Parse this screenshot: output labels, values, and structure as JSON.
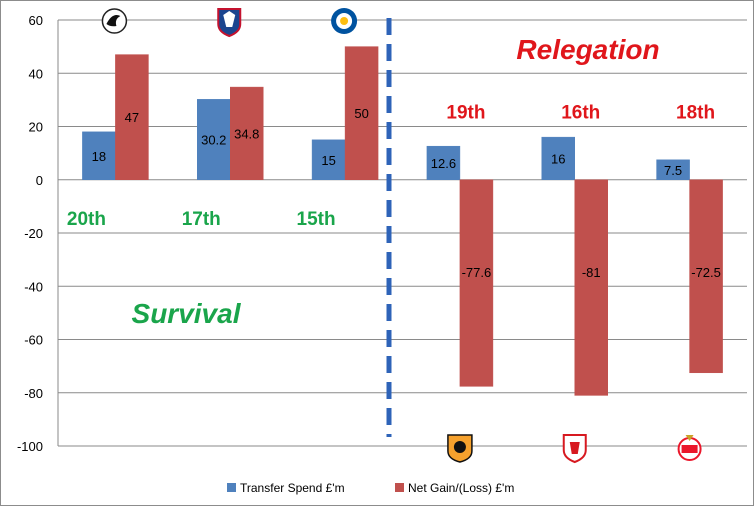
{
  "chart_data": {
    "type": "bar",
    "ylim": [
      -100,
      60
    ],
    "yticks": [
      60,
      40,
      20,
      0,
      -20,
      -40,
      -60,
      -80,
      -100
    ],
    "grid": true,
    "legend_position": "bottom",
    "categories": [
      "Swansea City",
      "Crystal Palace",
      "Leicester City",
      "Hull City",
      "Middlesbrough",
      "Sunderland"
    ],
    "series": [
      {
        "name": "Transfer Spend £'m",
        "color": "#4f81bd",
        "values": [
          18,
          30.2,
          15,
          12.6,
          16,
          7.5
        ]
      },
      {
        "name": "Net Gain/(Loss) £'m",
        "color": "#c0504d",
        "values": [
          47,
          34.8,
          50,
          -77.6,
          -81,
          -72.5
        ]
      }
    ],
    "data_labels": [
      [
        "18",
        "30.2",
        "15",
        "12.6",
        "16",
        "7.5"
      ],
      [
        "47",
        "34.8",
        "50",
        "-77.6",
        "-81",
        "-72.5"
      ]
    ],
    "positions": [
      "20th",
      "17th",
      "15th",
      "19th",
      "16th",
      "18th"
    ],
    "position_colors": [
      "#1aa54b",
      "#1aa54b",
      "#1aa54b",
      "#e0161b",
      "#e0161b",
      "#e0161b"
    ],
    "zones": {
      "survival": "Survival",
      "relegation": "Relegation"
    },
    "zone_colors": {
      "survival": "#1aa54b",
      "relegation": "#e0161b"
    },
    "divider_color": "#2e63b8",
    "club_icons": [
      "swan-crest-icon",
      "eagle-crest-icon",
      "fox-crest-icon",
      "tiger-crest-icon",
      "lion-crest-icon",
      "ship-crest-icon"
    ]
  }
}
